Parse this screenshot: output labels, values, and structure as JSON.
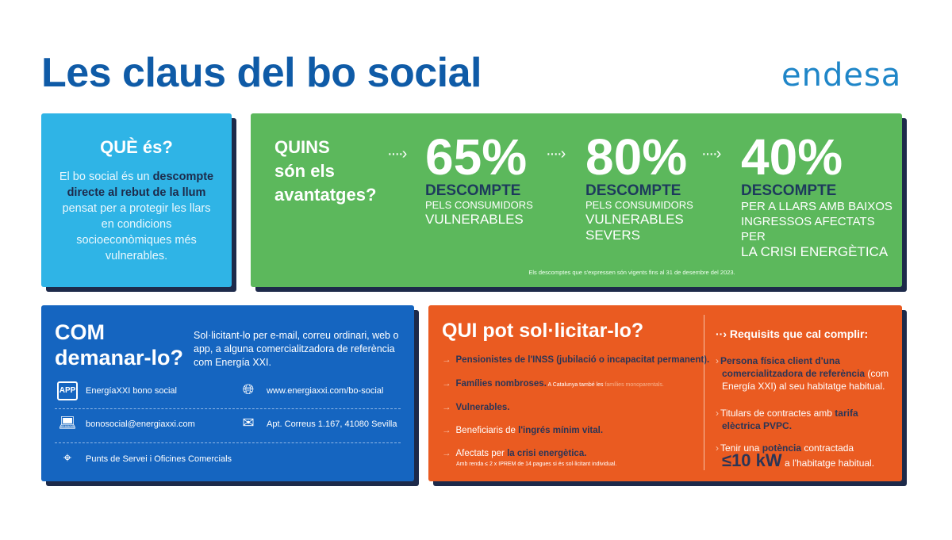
{
  "title": "Les claus del bo social",
  "logo": "endesa",
  "que": {
    "heading": "QUÈ és?",
    "t1": "El bo social és un",
    "b1": "descompte directe",
    "b2": "al rebut de la llum",
    "t2": " pensat",
    "t3": "per a protegir les llars en condicions socioeconòmiques més vulnerables."
  },
  "avantatges": {
    "heading1": "QUINS",
    "heading2": "són els",
    "heading3": "avantatges?",
    "items": [
      {
        "pct": "65%",
        "desc": "DESCOMPTE",
        "l1": "PELS CONSUMIDORS",
        "l2": "VULNERABLES",
        "l3": ""
      },
      {
        "pct": "80%",
        "desc": "DESCOMPTE",
        "l1": "PELS CONSUMIDORS",
        "l2": "VULNERABLES",
        "l3": "SEVERS"
      },
      {
        "pct": "40%",
        "desc": "DESCOMPTE",
        "l1": "PER A LLARS AMB BAIXOS",
        "l2": "INGRESSOS AFECTATS PER",
        "l3": "LA CRISI ENERGÈTICA"
      }
    ],
    "note": "Els descomptes que s'expressen són vigents fins al 31 de desembre del 2023."
  },
  "com": {
    "heading1": "COM",
    "heading2": "demanar-lo?",
    "text": "Sol·licitant-lo per e-mail, correu ordinari, web o app, a alguna comercialitzadora de referència com Energía XXI.",
    "app": "EnergíaXXI bono social",
    "web": "www.energiaxxi.com/bo-social",
    "email": "bonosocial@energiaxxi.com",
    "post": "Apt. Correus 1.167, 41080 Sevilla",
    "points": "Punts de Servei i Oficines Comercials",
    "app_icon": "APP"
  },
  "qui": {
    "heading": "QUI pot sol·licitar-lo?",
    "i1": "Pensionistes de l'INSS (jubilació o incapacitat permanent).",
    "i2": "Famílies nombroses.",
    "i2s": " A Catalunya també les ",
    "i2l": "famílies monoparentals.",
    "i3": "Vulnerables.",
    "i4a": "Beneficiaris de ",
    "i4b": "l'ingrés mínim vital.",
    "i5a": "Afectats per ",
    "i5b": "la crisi energètica.",
    "i5s": "Amb renda ≤ 2 x IPREM de 14 pagues si és sol·licitant individual.",
    "req": "Requisits que cal complir:",
    "r1b": "Persona física client d'una comercialitzadora de referència",
    "r1": " (com Energía XXI) al seu habitatge habitual.",
    "r2": "Titulars de contractes amb ",
    "r2b": "tarifa elèctrica PVPC.",
    "r3": "Tenir una ",
    "r3b": "potència",
    "r3c": " contractada",
    "r3big": "≤10 kW",
    "r3d": " a l'habitatge habitual."
  },
  "colors": {
    "title": "#0f5ba7",
    "cyan": "#2fb4e6",
    "green": "#5cb85c",
    "blue": "#1565c0",
    "orange": "#ea5b21",
    "navy": "#1d2a4a"
  }
}
